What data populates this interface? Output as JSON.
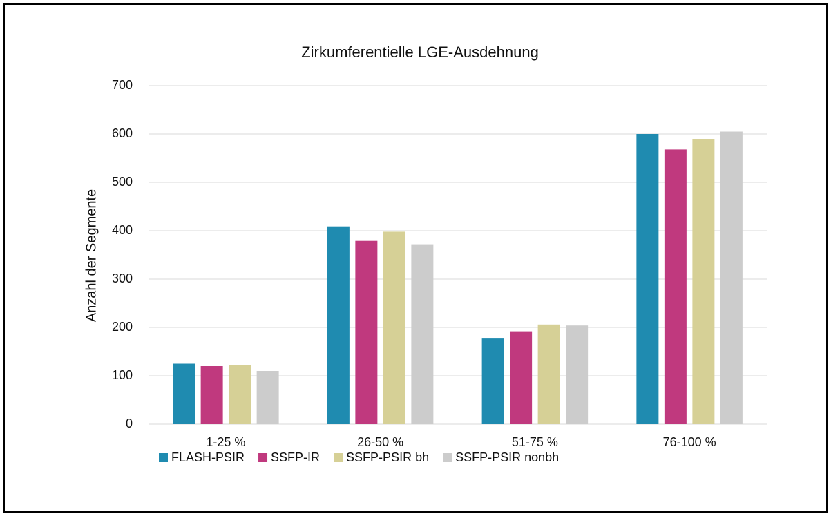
{
  "chart_data": {
    "type": "bar",
    "title": "Zirkumferentielle LGE-Ausdehnung",
    "y_label": "Anzahl der Segmente",
    "categories": [
      "1-25 %",
      "26-50 %",
      "51-75 %",
      "76-100 %"
    ],
    "series": [
      {
        "name": "FLASH-PSIR",
        "color": "#1f8bb0",
        "values": [
          125,
          409,
          177,
          600
        ]
      },
      {
        "name": "SSFP-IR",
        "color": "#c0397e",
        "values": [
          120,
          379,
          192,
          568
        ]
      },
      {
        "name": "SSFP-PSIR bh",
        "color": "#d6d096",
        "values": [
          122,
          398,
          206,
          590
        ]
      },
      {
        "name": "SSFP-PSIR nonbh",
        "color": "#cccccc",
        "values": [
          110,
          372,
          204,
          605
        ]
      }
    ],
    "ylim": [
      0,
      700
    ],
    "yticks": [
      0,
      100,
      200,
      300,
      400,
      500,
      600,
      700
    ],
    "grid": true,
    "legend": "bottom"
  }
}
